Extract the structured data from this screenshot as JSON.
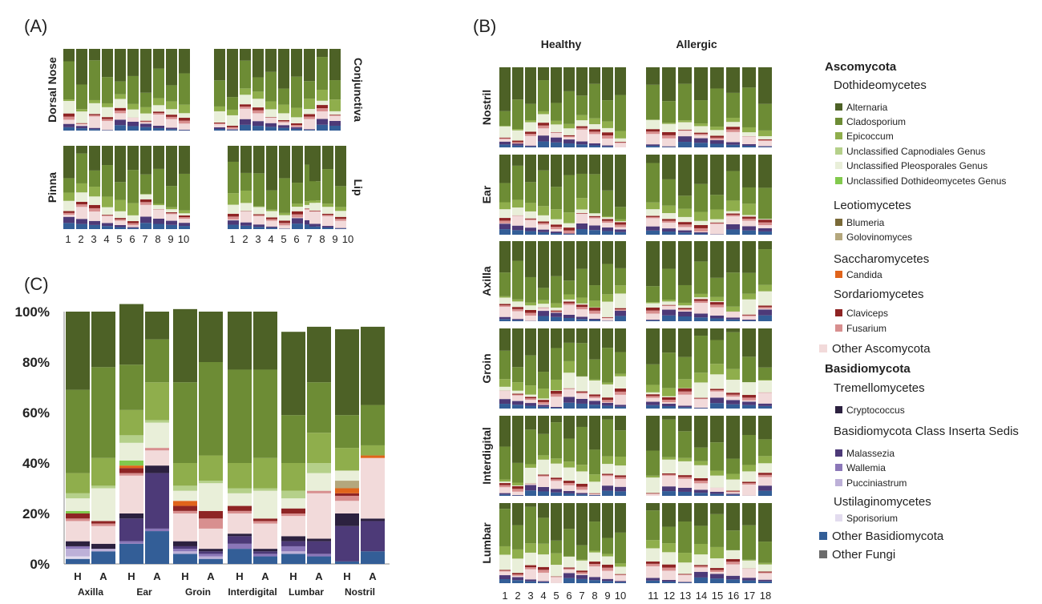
{
  "panels": {
    "a": "(A)",
    "b": "(B)",
    "c": "(C)"
  },
  "colors": {
    "Alternaria": "#4d6126",
    "Cladosporium": "#6d8c35",
    "Epicoccum": "#8fae4c",
    "Unclassified Capnodiales Genus": "#b5d08a",
    "Unclassified Pleosporales Genus": "#e9efd9",
    "Unclassified Dothideomycetes Genus": "#82c94d",
    "Blumeria": "#7a6a38",
    "Golovinomyces": "#b4a77d",
    "Candida": "#e0641b",
    "Claviceps": "#8e2424",
    "Fusarium": "#d88f8f",
    "Other Ascomycota": "#f2dada",
    "Cryptococcus": "#2c213f",
    "Malassezia": "#4d3a78",
    "Wallemia": "#8b77b8",
    "Pucciniastrum": "#bdb0d8",
    "Sporisorium": "#e3dcef",
    "Other Basidiomycota": "#335e97",
    "Other Fungi": "#6b6b6b"
  },
  "legend": [
    {
      "kind": "phylum",
      "text": "Ascomycota"
    },
    {
      "kind": "class",
      "text": "Dothideomycetes"
    },
    {
      "kind": "genus",
      "text": "Alternaria"
    },
    {
      "kind": "genus",
      "text": "Cladosporium"
    },
    {
      "kind": "genus",
      "text": "Epicoccum"
    },
    {
      "kind": "genus",
      "text": "Unclassified Capnodiales Genus"
    },
    {
      "kind": "genus",
      "text": "Unclassified Pleosporales Genus"
    },
    {
      "kind": "genus",
      "text": "Unclassified Dothideomycetes Genus"
    },
    {
      "kind": "class",
      "text": "Leotiomycetes"
    },
    {
      "kind": "genus",
      "text": "Blumeria"
    },
    {
      "kind": "genus",
      "text": "Golovinomyces"
    },
    {
      "kind": "class",
      "text": "Saccharomycetes"
    },
    {
      "kind": "genus",
      "text": "Candida"
    },
    {
      "kind": "class",
      "text": "Sordariomycetes"
    },
    {
      "kind": "genus",
      "text": "Claviceps"
    },
    {
      "kind": "genus",
      "text": "Fusarium"
    },
    {
      "kind": "other",
      "text": "Other Ascomycota"
    },
    {
      "kind": "phylum",
      "text": "Basidiomycota"
    },
    {
      "kind": "class",
      "text": "Tremellomycetes"
    },
    {
      "kind": "genus",
      "text": "Cryptococcus"
    },
    {
      "kind": "class",
      "text": "Basidiomycota Class Inserta Sedis"
    },
    {
      "kind": "genus",
      "text": "Malassezia"
    },
    {
      "kind": "genus",
      "text": "Wallemia"
    },
    {
      "kind": "genus",
      "text": "Pucciniastrum"
    },
    {
      "kind": "class",
      "text": "Ustilaginomycetes"
    },
    {
      "kind": "genus",
      "text": "Sporisorium"
    },
    {
      "kind": "other",
      "text": "Other Basidiomycota"
    },
    {
      "kind": "other",
      "text": "Other Fungi"
    }
  ],
  "panel_a": {
    "site_labels": [
      "Dorsal Nose",
      "Conjunctiva",
      "Pinna",
      "Lip"
    ],
    "x_ticks": [
      "1",
      "2",
      "3",
      "4",
      "5",
      "6",
      "7",
      "8",
      "9",
      "10",
      "1",
      "2",
      "3",
      "4",
      "5",
      "6",
      "7",
      "8",
      "9",
      "10"
    ]
  },
  "panel_b": {
    "group_labels": [
      "Healthy",
      "Allergic"
    ],
    "site_labels": [
      "Nostril",
      "Ear",
      "Axilla",
      "Groin",
      "Interdigital",
      "Lumbar"
    ],
    "x_ticks": [
      "1",
      "2",
      "3",
      "4",
      "5",
      "6",
      "7",
      "8",
      "9",
      "10",
      "11",
      "12",
      "13",
      "14",
      "15",
      "16",
      "17",
      "18"
    ]
  },
  "chart_data": [
    {
      "type": "bar",
      "stacked": true,
      "title": "",
      "xlabel": "",
      "ylabel": "",
      "ylim": [
        0,
        100
      ],
      "y_ticks": [
        "0%",
        "20%",
        "40%",
        "60%",
        "80%",
        "100%"
      ],
      "grid": false,
      "categories": [
        "H",
        "A",
        "H",
        "A",
        "H",
        "A",
        "H",
        "A",
        "H",
        "A",
        "H",
        "A"
      ],
      "groups": [
        "Axilla",
        "Ear",
        "Groin",
        "Interdigital",
        "Lumbar",
        "Nostril"
      ],
      "series": [
        {
          "name": "Other Basidiomycota",
          "values": [
            2,
            5,
            8,
            13,
            4,
            2,
            6,
            3,
            4,
            3,
            1,
            5
          ]
        },
        {
          "name": "Other Fungi",
          "values": [
            0,
            0,
            0,
            0,
            0,
            0,
            0,
            0,
            0,
            0,
            0,
            0
          ]
        },
        {
          "name": "Sporisorium",
          "values": [
            1,
            0,
            0,
            0,
            0,
            0,
            0,
            0,
            0,
            0,
            0,
            0
          ]
        },
        {
          "name": "Pucciniastrum",
          "values": [
            3,
            1,
            0,
            0,
            1,
            1,
            0,
            0,
            1,
            0,
            0,
            0
          ]
        },
        {
          "name": "Wallemia",
          "values": [
            1,
            0,
            1,
            1,
            1,
            1,
            2,
            1,
            2,
            1,
            0,
            0
          ]
        },
        {
          "name": "Malassezia",
          "values": [
            0,
            0,
            9,
            22,
            1,
            1,
            3,
            1,
            2,
            5,
            14,
            12
          ]
        },
        {
          "name": "Cryptococcus",
          "values": [
            2,
            2,
            2,
            3,
            2,
            1,
            1,
            1,
            2,
            1,
            5,
            1
          ]
        },
        {
          "name": "Other Ascomycota",
          "values": [
            8,
            7,
            15,
            6,
            11,
            8,
            8,
            10,
            8,
            18,
            5,
            24
          ]
        },
        {
          "name": "Fusarium",
          "values": [
            1,
            1,
            1,
            1,
            1,
            4,
            1,
            1,
            1,
            1,
            2,
            0
          ]
        },
        {
          "name": "Claviceps",
          "values": [
            2,
            1,
            2,
            0,
            2,
            3,
            2,
            1,
            2,
            0,
            1,
            0
          ]
        },
        {
          "name": "Candida",
          "values": [
            0,
            0,
            1,
            0,
            2,
            0,
            0,
            0,
            0,
            0,
            2,
            1
          ]
        },
        {
          "name": "Golovinomyces",
          "values": [
            0,
            0,
            0,
            0,
            0,
            0,
            0,
            0,
            0,
            0,
            3,
            0
          ]
        },
        {
          "name": "Blumeria",
          "values": [
            0,
            0,
            0,
            0,
            0,
            0,
            0,
            0,
            0,
            0,
            0,
            0
          ]
        },
        {
          "name": "Unclassified Dothideomycetes Genus",
          "values": [
            1,
            0,
            2,
            0,
            0,
            0,
            0,
            0,
            0,
            0,
            0,
            0
          ]
        },
        {
          "name": "Unclassified Pleosporales Genus",
          "values": [
            5,
            13,
            7,
            10,
            4,
            11,
            5,
            11,
            4,
            7,
            4,
            0
          ]
        },
        {
          "name": "Unclassified Capnodiales Genus",
          "values": [
            2,
            1,
            3,
            1,
            2,
            1,
            2,
            1,
            3,
            4,
            0,
            0
          ]
        },
        {
          "name": "Epicoccum",
          "values": [
            8,
            11,
            10,
            15,
            9,
            10,
            10,
            12,
            11,
            12,
            9,
            4
          ]
        },
        {
          "name": "Cladosporium",
          "values": [
            33,
            36,
            18,
            17,
            32,
            37,
            37,
            35,
            19,
            20,
            13,
            16
          ]
        },
        {
          "name": "Alternaria",
          "values": [
            31,
            22,
            24,
            11,
            29,
            20,
            23,
            23,
            33,
            22,
            34,
            31
          ]
        }
      ],
      "order_note": "series listed bottom-to-top"
    }
  ]
}
